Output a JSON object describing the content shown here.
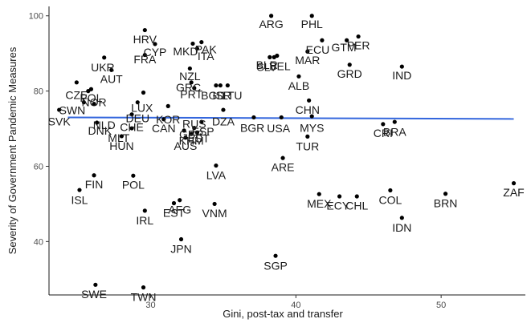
{
  "chart_data": {
    "type": "scatter",
    "xlabel": "Gini, post-tax and transfer",
    "ylabel": "Severity of Government Pandemic Measures",
    "xlim": [
      23,
      55.8
    ],
    "ylim": [
      25.8,
      102.5
    ],
    "xticks": [
      30,
      40,
      50
    ],
    "yticks": [
      40,
      60,
      80,
      100
    ],
    "grid": false,
    "trend_color": "#3366dd",
    "trend": {
      "x": [
        24.3,
        55.0
      ],
      "y": [
        73.0,
        72.6
      ]
    },
    "points": [
      {
        "label": "ARG",
        "x": 38.3,
        "y": 100.0
      },
      {
        "label": "PHL",
        "x": 41.1,
        "y": 100.0
      },
      {
        "label": "HRV",
        "x": 29.6,
        "y": 96.2
      },
      {
        "label": "PER",
        "x": 44.3,
        "y": 94.5
      },
      {
        "label": "GTM",
        "x": 43.5,
        "y": 93.5
      },
      {
        "label": "ECU",
        "x": 41.8,
        "y": 93.5
      },
      {
        "label": "CYP",
        "x": 30.3,
        "y": 92.5
      },
      {
        "label": "PAK",
        "x": 33.5,
        "y": 93.0
      },
      {
        "label": "MKD",
        "x": 32.9,
        "y": 92.6
      },
      {
        "label": "ITA",
        "x": 33.2,
        "y": 91.3
      },
      {
        "label": "MAR",
        "x": 40.8,
        "y": 90.5
      },
      {
        "label": "FRA",
        "x": 29.6,
        "y": 89.6
      },
      {
        "label": "BLR",
        "x": 38.2,
        "y": 89.0
      },
      {
        "label": "BEL",
        "x": 38.7,
        "y": 89.4
      },
      {
        "label": "SLV",
        "x": 38.5,
        "y": 89.0
      },
      {
        "label": "GRD",
        "x": 43.7,
        "y": 87.0
      },
      {
        "label": "IND",
        "x": 47.3,
        "y": 86.5
      },
      {
        "label": "UKR",
        "x": 26.8,
        "y": 88.9
      },
      {
        "label": "AUT",
        "x": 27.3,
        "y": 85.6
      },
      {
        "label": "NZL",
        "x": 32.7,
        "y": 86.0
      },
      {
        "label": "ALB",
        "x": 40.2,
        "y": 83.9
      },
      {
        "label": "GRC",
        "x": 32.8,
        "y": 82.3
      },
      {
        "label": "PRT",
        "x": 33.0,
        "y": 80.8
      },
      {
        "label": "BGD",
        "x": 34.5,
        "y": 81.5
      },
      {
        "label": "ISR",
        "x": 34.8,
        "y": 81.5
      },
      {
        "label": "LTU",
        "x": 35.3,
        "y": 81.5
      },
      {
        "label": "CZE",
        "x": 24.9,
        "y": 82.3
      },
      {
        "label": "NOR",
        "x": 25.7,
        "y": 80.0
      },
      {
        "label": "POL2",
        "x": 25.9,
        "y": 80.5
      },
      {
        "label": "DEU",
        "x": 29.5,
        "y": 79.6
      },
      {
        "label": "LUX",
        "x": 29.1,
        "y": 77.0
      },
      {
        "label": "CHN",
        "x": 40.9,
        "y": 77.5
      },
      {
        "label": "SWN",
        "x": 25.4,
        "y": 77.0
      },
      {
        "label": "NLD",
        "x": 26.1,
        "y": 76.6
      },
      {
        "label": "SVK",
        "x": 23.7,
        "y": 75.0
      },
      {
        "label": "KOR",
        "x": 31.2,
        "y": 76.0
      },
      {
        "label": "DZA",
        "x": 35.0,
        "y": 75.0
      },
      {
        "label": "CHE",
        "x": 28.7,
        "y": 73.8
      },
      {
        "label": "CAN",
        "x": 30.9,
        "y": 72.5
      },
      {
        "label": "RUS",
        "x": 33.5,
        "y": 71.8
      },
      {
        "label": "BGR",
        "x": 37.1,
        "y": 73.0
      },
      {
        "label": "USA",
        "x": 39.0,
        "y": 73.0
      },
      {
        "label": "DNK",
        "x": 26.3,
        "y": 71.6
      },
      {
        "label": "MYS",
        "x": 41.1,
        "y": 73.3
      },
      {
        "label": "MLT",
        "x": 28.7,
        "y": 70.1
      },
      {
        "label": "ESP",
        "x": 33.0,
        "y": 70.2
      },
      {
        "label": "GBR",
        "x": 32.3,
        "y": 69.5
      },
      {
        "label": "EST",
        "x": 33.2,
        "y": 69.0
      },
      {
        "label": "KHM",
        "x": 32.8,
        "y": 68.6
      },
      {
        "label": "AUS",
        "x": 32.4,
        "y": 67.6
      },
      {
        "label": "CRI",
        "x": 46.0,
        "y": 71.2
      },
      {
        "label": "BRA",
        "x": 46.8,
        "y": 71.8
      },
      {
        "label": "HUN",
        "x": 28.0,
        "y": 68.0
      },
      {
        "label": "TUR",
        "x": 40.8,
        "y": 67.9
      },
      {
        "label": "ARE",
        "x": 39.1,
        "y": 62.2
      },
      {
        "label": "LVA",
        "x": 34.5,
        "y": 60.2
      },
      {
        "label": "FIN",
        "x": 26.1,
        "y": 57.6
      },
      {
        "label": "POL",
        "x": 28.8,
        "y": 57.5
      },
      {
        "label": "ZAF",
        "x": 55.0,
        "y": 55.5
      },
      {
        "label": "ISL",
        "x": 25.1,
        "y": 53.7
      },
      {
        "label": "COL",
        "x": 46.5,
        "y": 53.6
      },
      {
        "label": "MEX",
        "x": 41.6,
        "y": 52.6
      },
      {
        "label": "BRN",
        "x": 50.3,
        "y": 52.7
      },
      {
        "label": "ECY",
        "x": 43.0,
        "y": 52.0
      },
      {
        "label": "CHL",
        "x": 44.2,
        "y": 52.0
      },
      {
        "label": "AFG",
        "x": 32.0,
        "y": 51.0
      },
      {
        "label": "EST2",
        "x": 31.6,
        "y": 50.2
      },
      {
        "label": "VNM",
        "x": 34.4,
        "y": 50.0
      },
      {
        "label": "IRL",
        "x": 29.6,
        "y": 48.2
      },
      {
        "label": "IDN",
        "x": 47.3,
        "y": 46.3
      },
      {
        "label": "JPN",
        "x": 32.1,
        "y": 40.6
      },
      {
        "label": "SGP",
        "x": 38.6,
        "y": 36.2
      },
      {
        "label": "SWE",
        "x": 26.2,
        "y": 28.5
      },
      {
        "label": "TWN",
        "x": 29.5,
        "y": 27.8
      }
    ],
    "labels": [
      {
        "text": "ARG",
        "x": 38.3,
        "y": 97.8
      },
      {
        "text": "PHL",
        "x": 41.1,
        "y": 97.8
      },
      {
        "text": "HRV",
        "x": 29.6,
        "y": 93.8
      },
      {
        "text": "PER",
        "x": 44.3,
        "y": 92.2
      },
      {
        "text": "GTM",
        "x": 43.3,
        "y": 91.6
      },
      {
        "text": "ECU",
        "x": 41.5,
        "y": 91.0
      },
      {
        "text": "CYP",
        "x": 30.3,
        "y": 90.4
      },
      {
        "text": "PAK",
        "x": 33.8,
        "y": 91.1
      },
      {
        "text": "MKD",
        "x": 32.4,
        "y": 90.6
      },
      {
        "text": "ITA",
        "x": 33.8,
        "y": 89.3
      },
      {
        "text": "FRA",
        "x": 29.6,
        "y": 88.4
      },
      {
        "text": "MAR",
        "x": 40.8,
        "y": 88.2
      },
      {
        "text": "BLR",
        "x": 38.0,
        "y": 86.9
      },
      {
        "text": "BEL",
        "x": 38.9,
        "y": 86.6
      },
      {
        "text": "SLV",
        "x": 38.0,
        "y": 86.4
      },
      {
        "text": "GRD",
        "x": 43.7,
        "y": 84.6
      },
      {
        "text": "IND",
        "x": 47.3,
        "y": 84.2
      },
      {
        "text": "UKR",
        "x": 26.7,
        "y": 86.3
      },
      {
        "text": "AUT",
        "x": 27.3,
        "y": 83.2
      },
      {
        "text": "NZL",
        "x": 32.7,
        "y": 84.0
      },
      {
        "text": "ALB",
        "x": 40.2,
        "y": 81.4
      },
      {
        "text": "GRC",
        "x": 32.6,
        "y": 81.0
      },
      {
        "text": "PRT",
        "x": 32.8,
        "y": 79.2
      },
      {
        "text": "BGD",
        "x": 34.3,
        "y": 78.8
      },
      {
        "text": "ISR",
        "x": 34.9,
        "y": 78.8
      },
      {
        "text": "LTU",
        "x": 35.6,
        "y": 78.8
      },
      {
        "text": "CZE",
        "x": 24.9,
        "y": 79.0
      },
      {
        "text": "POL",
        "x": 25.9,
        "y": 78.2
      },
      {
        "text": "NOR",
        "x": 26.1,
        "y": 77.0
      },
      {
        "text": "LUX",
        "x": 29.4,
        "y": 75.6
      },
      {
        "text": "CHN",
        "x": 40.8,
        "y": 75.0
      },
      {
        "text": "SWN",
        "x": 24.6,
        "y": 74.9
      },
      {
        "text": "DEU",
        "x": 29.1,
        "y": 72.8
      },
      {
        "text": "KOR",
        "x": 31.2,
        "y": 72.5
      },
      {
        "text": "SVK",
        "x": 23.7,
        "y": 71.9
      },
      {
        "text": "DZA",
        "x": 35.0,
        "y": 71.9
      },
      {
        "text": "RUS",
        "x": 33.0,
        "y": 71.3
      },
      {
        "text": "NLD",
        "x": 26.8,
        "y": 71.0
      },
      {
        "text": "CHE",
        "x": 28.7,
        "y": 70.4
      },
      {
        "text": "CAN",
        "x": 30.9,
        "y": 70.1
      },
      {
        "text": "BGR",
        "x": 37.0,
        "y": 70.2
      },
      {
        "text": "USA",
        "x": 38.8,
        "y": 70.1
      },
      {
        "text": "MYS",
        "x": 41.1,
        "y": 70.2
      },
      {
        "text": "DNK",
        "x": 26.5,
        "y": 69.5
      },
      {
        "text": "ESP",
        "x": 33.6,
        "y": 69.3
      },
      {
        "text": "GBR",
        "x": 32.8,
        "y": 68.5
      },
      {
        "text": "CRI",
        "x": 46.0,
        "y": 68.8
      },
      {
        "text": "BRA",
        "x": 46.8,
        "y": 69.2
      },
      {
        "text": "MLT",
        "x": 27.8,
        "y": 67.6
      },
      {
        "text": "EST",
        "x": 33.3,
        "y": 67.4
      },
      {
        "text": "KHM",
        "x": 32.8,
        "y": 66.8
      },
      {
        "text": "AUS",
        "x": 32.4,
        "y": 65.4
      },
      {
        "text": "HUN",
        "x": 28.0,
        "y": 65.4
      },
      {
        "text": "TUR",
        "x": 40.8,
        "y": 65.3
      },
      {
        "text": "ARE",
        "x": 39.1,
        "y": 59.8
      },
      {
        "text": "LVA",
        "x": 34.5,
        "y": 57.6
      },
      {
        "text": "FIN",
        "x": 26.1,
        "y": 55.2
      },
      {
        "text": "POL",
        "x": 28.8,
        "y": 55.1
      },
      {
        "text": "ZAF",
        "x": 55.0,
        "y": 53.1
      },
      {
        "text": "ISL",
        "x": 25.1,
        "y": 51.1
      },
      {
        "text": "COL",
        "x": 46.5,
        "y": 51.1
      },
      {
        "text": "MEX",
        "x": 41.6,
        "y": 50.1
      },
      {
        "text": "ECY",
        "x": 42.9,
        "y": 49.6
      },
      {
        "text": "CHL",
        "x": 44.2,
        "y": 49.6
      },
      {
        "text": "BRN",
        "x": 50.3,
        "y": 50.2
      },
      {
        "text": "AFG",
        "x": 32.0,
        "y": 48.5
      },
      {
        "text": "EST",
        "x": 31.6,
        "y": 47.6
      },
      {
        "text": "VNM",
        "x": 34.4,
        "y": 47.5
      },
      {
        "text": "IRL",
        "x": 29.6,
        "y": 45.6
      },
      {
        "text": "IDN",
        "x": 47.3,
        "y": 43.7
      },
      {
        "text": "JPN",
        "x": 32.1,
        "y": 38.1
      },
      {
        "text": "SGP",
        "x": 38.6,
        "y": 33.6
      },
      {
        "text": "SWE",
        "x": 26.1,
        "y": 26.0
      },
      {
        "text": "TWN",
        "x": 29.5,
        "y": 25.3
      }
    ]
  }
}
